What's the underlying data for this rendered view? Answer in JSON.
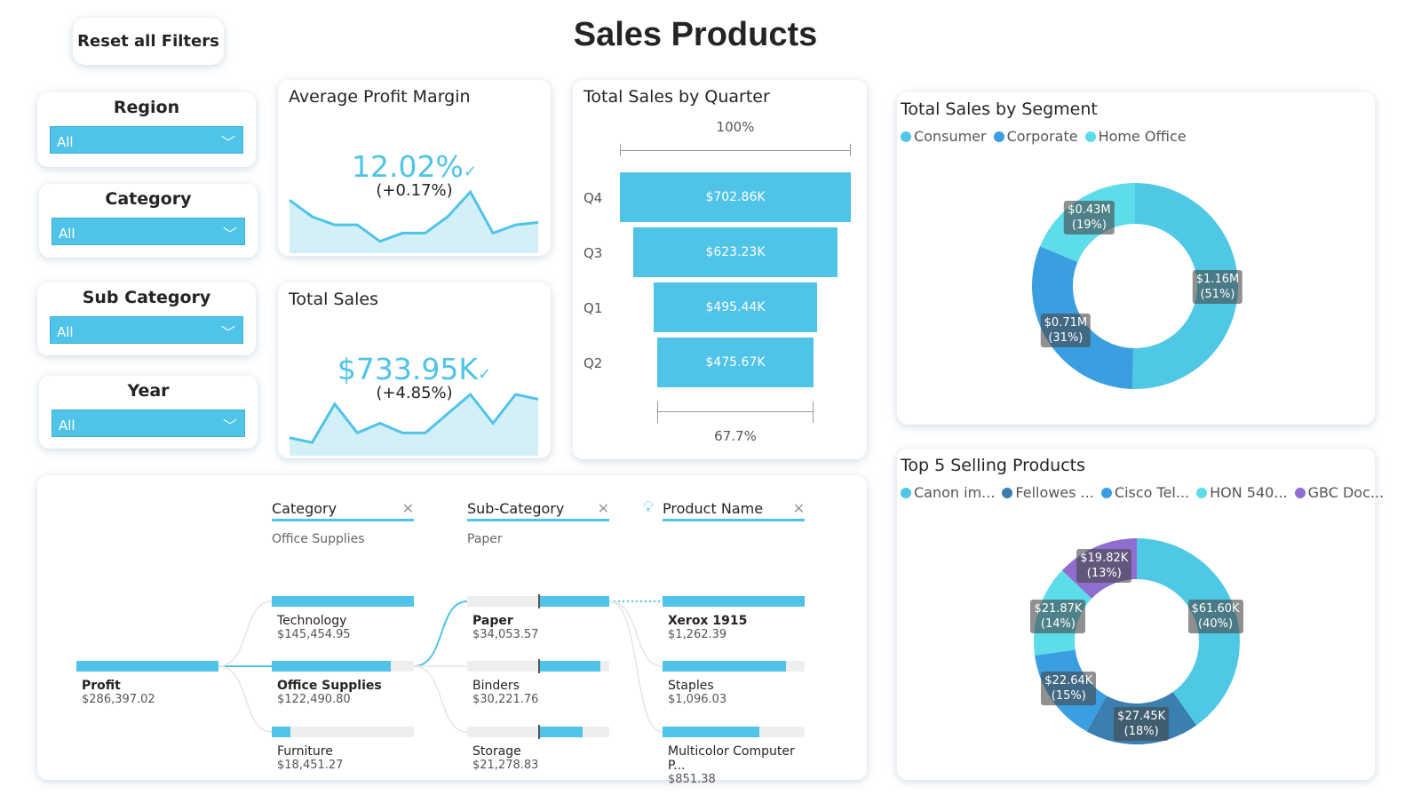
{
  "title": "Sales Products",
  "reset_label": "Reset all Filters",
  "slicers": [
    {
      "label": "Region",
      "value": "All"
    },
    {
      "label": "Category",
      "value": "All"
    },
    {
      "label": "Sub Category",
      "value": "All"
    },
    {
      "label": "Year",
      "value": "All"
    }
  ],
  "colors": {
    "accent": "#4fc3e8",
    "consumer": "#4fc8e6",
    "corporate": "#3a9fe0",
    "home_office": "#5ddcea",
    "fellowes": "#3a7fb0",
    "gbc": "#8e6fd0"
  },
  "kpis": {
    "margin": {
      "title": "Average Profit Margin",
      "value": "12.02%",
      "change": "(+0.17%)"
    },
    "sales": {
      "title": "Total Sales",
      "value": "$733.95K",
      "change": "(+4.85%)"
    }
  },
  "chart_data": [
    {
      "type": "area",
      "name": "profit-margin-sparkline",
      "values": [
        6,
        4,
        3,
        3,
        1,
        2,
        2,
        4,
        7,
        2,
        3,
        3.3
      ]
    },
    {
      "type": "area",
      "name": "sales-sparkline",
      "values": [
        1.5,
        1,
        5,
        2,
        3,
        2,
        2,
        4,
        6,
        3,
        6,
        5.5
      ]
    },
    {
      "type": "bar",
      "title": "Total Sales by Quarter",
      "categories": [
        "Q4",
        "Q3",
        "Q1",
        "Q2"
      ],
      "values": [
        702.86,
        623.23,
        495.44,
        475.67
      ],
      "labels": [
        "$702.86K",
        "$623.23K",
        "$495.44K",
        "$475.67K"
      ],
      "top_pct": "100%",
      "bottom_pct": "67.7%"
    },
    {
      "type": "pie",
      "title": "Total Sales by Segment",
      "legend": [
        "Consumer",
        "Corporate",
        "Home Office"
      ],
      "values": [
        1.16,
        0.71,
        0.43
      ],
      "labels": [
        "$1.16M\n(51%)",
        "$0.71M\n(31%)",
        "$0.43M\n(19%)"
      ],
      "percents": [
        51,
        31,
        19
      ],
      "legend_position": "top-left"
    },
    {
      "type": "pie",
      "title": "Top 5 Selling Products",
      "legend": [
        "Canon im...",
        "Fellowes ...",
        "Cisco Tel...",
        "HON 540...",
        "GBC Doc..."
      ],
      "values": [
        61.6,
        27.45,
        22.64,
        21.87,
        19.82
      ],
      "labels": [
        "$61.60K\n(40%)",
        "$27.45K\n(18%)",
        "$22.64K\n(15%)",
        "$21.87K\n(14%)",
        "$19.82K\n(13%)"
      ],
      "percents": [
        40,
        18,
        15,
        14,
        13
      ],
      "legend_position": "top-left"
    }
  ],
  "tree": {
    "root": {
      "name": "Profit",
      "value": "$286,397.02"
    },
    "headers": [
      {
        "label": "Category",
        "selected": "Office Supplies"
      },
      {
        "label": "Sub-Category",
        "selected": "Paper"
      },
      {
        "label": "Product Name",
        "selected": ""
      }
    ],
    "columns": [
      [
        {
          "name": "Technology",
          "value": "$145,454.95",
          "fill": 1
        },
        {
          "name": "Office Supplies",
          "value": "$122,490.80",
          "fill": 0.84
        },
        {
          "name": "Furniture",
          "value": "$18,451.27",
          "fill": 0.13
        }
      ],
      [
        {
          "name": "Paper",
          "value": "$34,053.57",
          "fill": 0.5
        },
        {
          "name": "Binders",
          "value": "$30,221.76",
          "fill": 0.44
        },
        {
          "name": "Storage",
          "value": "$21,278.83",
          "fill": 0.31
        }
      ],
      [
        {
          "name": "Xerox 1915",
          "value": "$1,262.39",
          "fill": 1
        },
        {
          "name": "Staples",
          "value": "$1,096.03",
          "fill": 0.87
        },
        {
          "name": "Multicolor Computer P...",
          "value": "$851.38",
          "fill": 0.68
        }
      ]
    ]
  }
}
